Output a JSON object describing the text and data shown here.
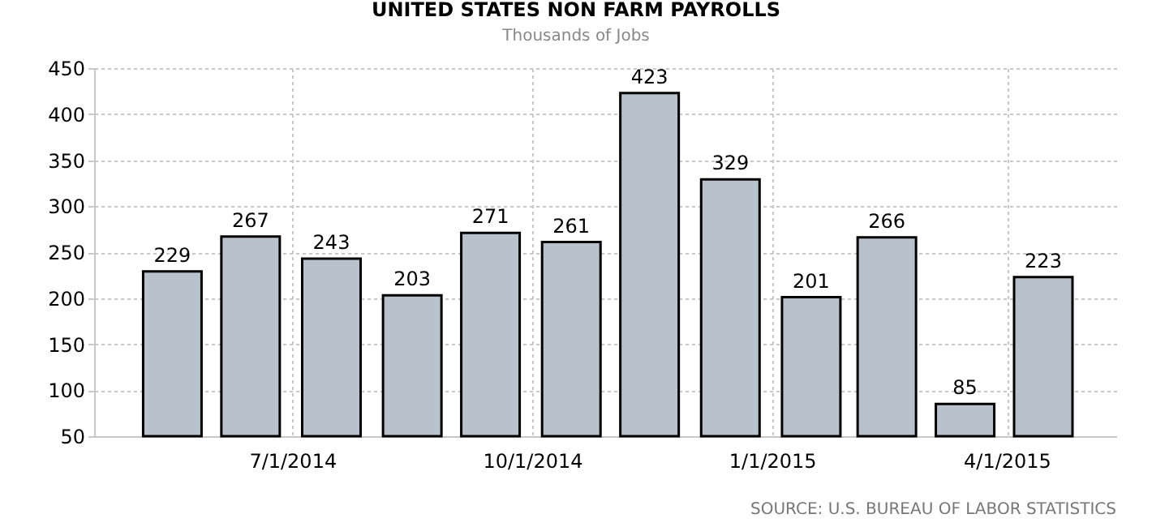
{
  "chart_data": {
    "type": "bar",
    "title": "UNITED STATES NON FARM PAYROLLS",
    "subtitle": "Thousands of Jobs",
    "x": [
      "2014-05-16",
      "2014-06-15",
      "2014-07-16",
      "2014-08-16",
      "2014-09-15",
      "2014-10-16",
      "2014-11-15",
      "2014-12-16",
      "2015-01-16",
      "2015-02-14",
      "2015-03-16",
      "2015-04-15"
    ],
    "values": [
      229,
      267,
      243,
      203,
      271,
      261,
      423,
      329,
      201,
      266,
      85,
      223
    ],
    "color": "#b8c2cc",
    "xlim": [
      "2014-04-16",
      "2015-05-13"
    ],
    "xticks": [
      {
        "value": "2014-07-01",
        "label": "7/1/2014"
      },
      {
        "value": "2014-10-01",
        "label": "10/1/2014"
      },
      {
        "value": "2015-01-01",
        "label": "1/1/2015"
      },
      {
        "value": "2015-04-01",
        "label": "4/1/2015"
      }
    ],
    "ylim": [
      50,
      450
    ],
    "yticks": [
      50,
      100,
      150,
      200,
      250,
      300,
      350,
      400,
      450
    ],
    "grid": true,
    "data_labels": true,
    "annotations": [
      "SOURCE: U.S. BUREAU OF LABOR STATISTICS"
    ]
  }
}
